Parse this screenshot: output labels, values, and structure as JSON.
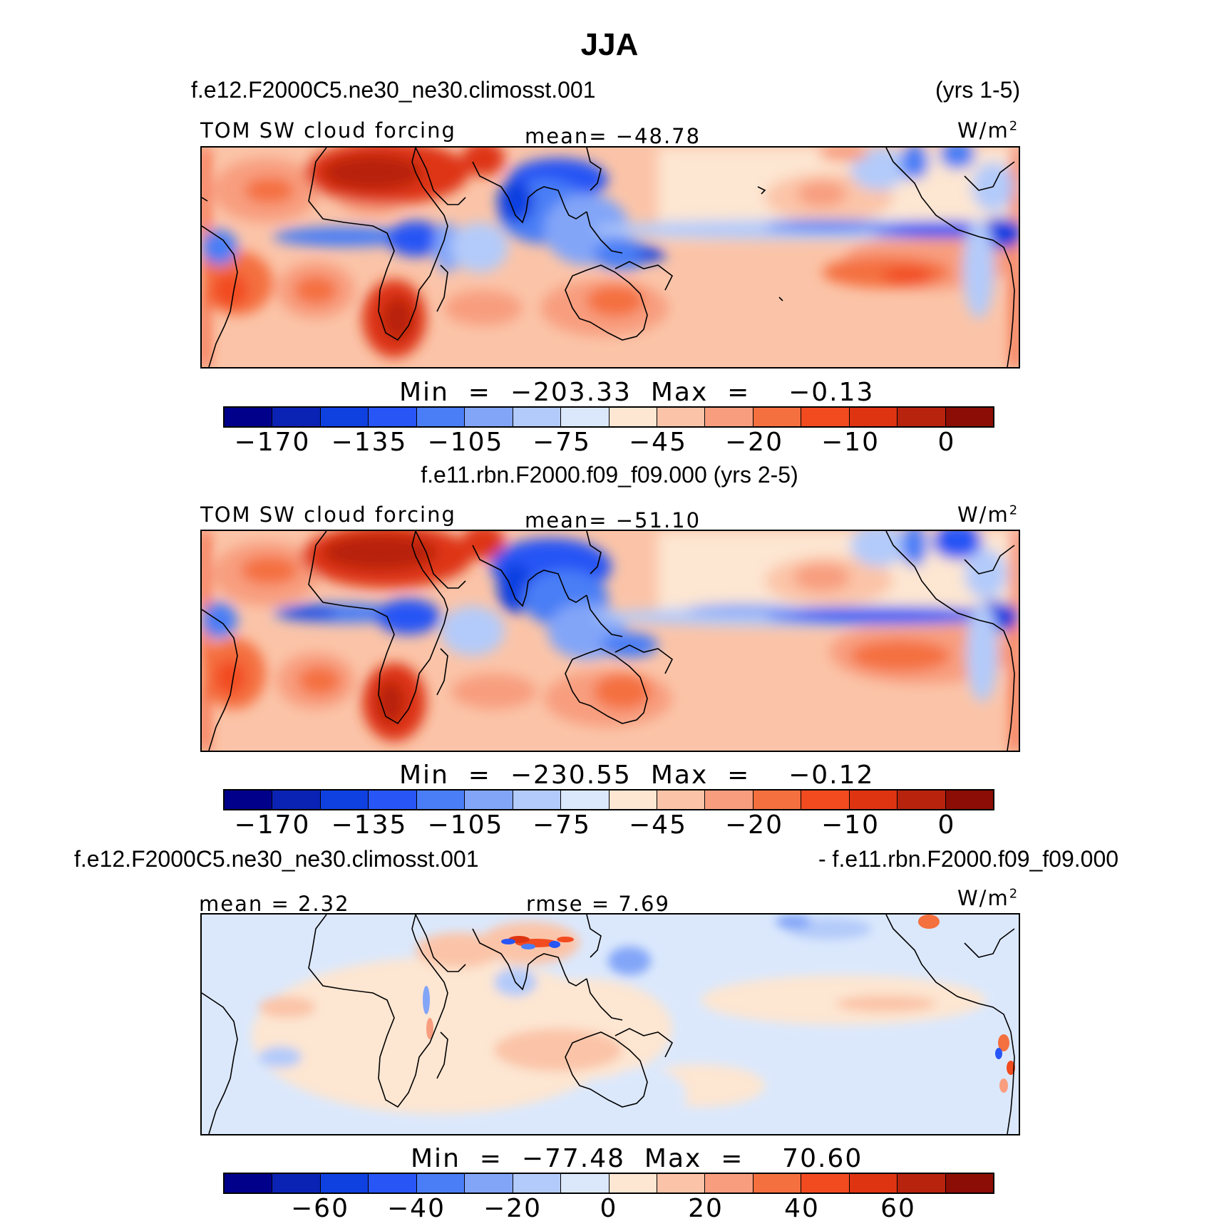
{
  "title": "JJA",
  "panels": [
    {
      "case": "f.e12.F2000C5.ne30_ne30.climosst.001",
      "years": "(yrs 1-5)",
      "variable": "TOM SW cloud forcing",
      "mean": "mean= −48.78",
      "units": "W/m",
      "units_sup": "2",
      "minmax": "Min  =  −203.33  Max  =    −0.13",
      "ticks": [
        "−170",
        "−135",
        "−105",
        "−75",
        "−45",
        "−20",
        "−10",
        "0"
      ]
    },
    {
      "case": "f.e11.rbn.F2000.f09_f09.000 (yrs 2-5)",
      "variable": "TOM SW cloud forcing",
      "mean": "mean= −51.10",
      "units": "W/m",
      "units_sup": "2",
      "minmax": "Min  =  −230.55  Max  =    −0.12",
      "ticks": [
        "−170",
        "−135",
        "−105",
        "−75",
        "−45",
        "−20",
        "−10",
        "0"
      ]
    },
    {
      "case_left": "f.e12.F2000C5.ne30_ne30.climosst.001",
      "case_right": "- f.e11.rbn.F2000.f09_f09.000",
      "mean": "mean  =    2.32",
      "rmse": "rmse  =    7.69",
      "units": "W/m",
      "units_sup": "2",
      "minmax": "Min  =  −77.48  Max  =    70.60",
      "ticks": [
        "−60",
        "−40",
        "−20",
        "0",
        "20",
        "40",
        "60"
      ]
    }
  ],
  "colorbar_colors": [
    "#00008b",
    "#0a23b4",
    "#0f41e1",
    "#2855f5",
    "#4a7ef6",
    "#82a5f8",
    "#b3cbfa",
    "#dbe8fc",
    "#fde6d2",
    "#fbc4a8",
    "#f89e7f",
    "#f4703f",
    "#f24b20",
    "#de3412",
    "#b8230e",
    "#8b0d05"
  ]
}
